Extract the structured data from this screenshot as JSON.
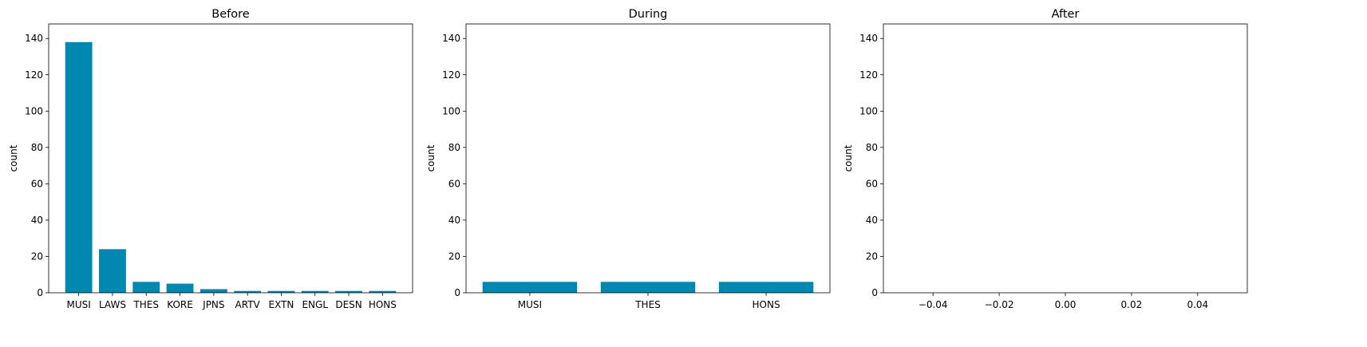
{
  "figure": {
    "background": "#ffffff",
    "bar_color": "#0088b0"
  },
  "chart_data": [
    {
      "type": "bar",
      "title": "Before",
      "xlabel": "",
      "ylabel": "count",
      "ylim": [
        0,
        148
      ],
      "yticks": [
        0,
        20,
        40,
        60,
        80,
        100,
        120,
        140
      ],
      "categories": [
        "MUSI",
        "LAWS",
        "THES",
        "KORE",
        "JPNS",
        "ARTV",
        "EXTN",
        "ENGL",
        "DESN",
        "HONS"
      ],
      "values": [
        138,
        24,
        6,
        5,
        2,
        1,
        1,
        1,
        1,
        1
      ],
      "grid": false
    },
    {
      "type": "bar",
      "title": "During",
      "xlabel": "",
      "ylabel": "count",
      "ylim": [
        0,
        148
      ],
      "yticks": [
        0,
        20,
        40,
        60,
        80,
        100,
        120,
        140
      ],
      "categories": [
        "MUSI",
        "THES",
        "HONS"
      ],
      "values": [
        6,
        6,
        6
      ],
      "grid": false
    },
    {
      "type": "bar",
      "title": "After",
      "xlabel": "",
      "ylabel": "count",
      "ylim": [
        0,
        148
      ],
      "yticks": [
        0,
        20,
        40,
        60,
        80,
        100,
        120,
        140
      ],
      "xlim": [
        -0.055,
        0.055
      ],
      "xticks": [
        -0.04,
        -0.02,
        0.0,
        0.02,
        0.04
      ],
      "xtick_labels": [
        "−0.04",
        "−0.02",
        "0.00",
        "0.02",
        "0.04"
      ],
      "categories": [],
      "values": [],
      "grid": false
    }
  ]
}
